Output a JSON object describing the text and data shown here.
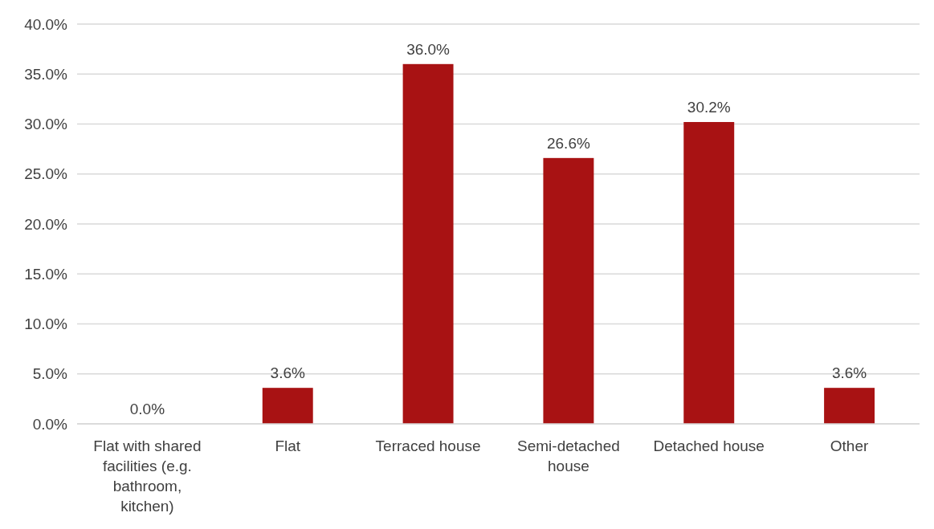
{
  "chart_data": {
    "type": "bar",
    "categories": [
      "Flat with shared facilities (e.g. bathroom, kitchen)",
      "Flat",
      "Terraced house",
      "Semi-detached house",
      "Detached house",
      "Other"
    ],
    "values": [
      0.0,
      3.6,
      36.0,
      26.6,
      30.2,
      3.6
    ],
    "value_labels": [
      "0.0%",
      "3.6%",
      "36.0%",
      "26.6%",
      "30.2%",
      "3.6%"
    ],
    "color": "#a81213",
    "ylim": [
      0,
      40
    ],
    "yticks": [
      {
        "value": 0,
        "label": "0.0%"
      },
      {
        "value": 5,
        "label": "5.0%"
      },
      {
        "value": 10,
        "label": "10.0%"
      },
      {
        "value": 15,
        "label": "15.0%"
      },
      {
        "value": 20,
        "label": "20.0%"
      },
      {
        "value": 25,
        "label": "25.0%"
      },
      {
        "value": 30,
        "label": "30.0%"
      },
      {
        "value": 35,
        "label": "35.0%"
      },
      {
        "value": 40,
        "label": "40.0%"
      }
    ],
    "grid": "y"
  }
}
